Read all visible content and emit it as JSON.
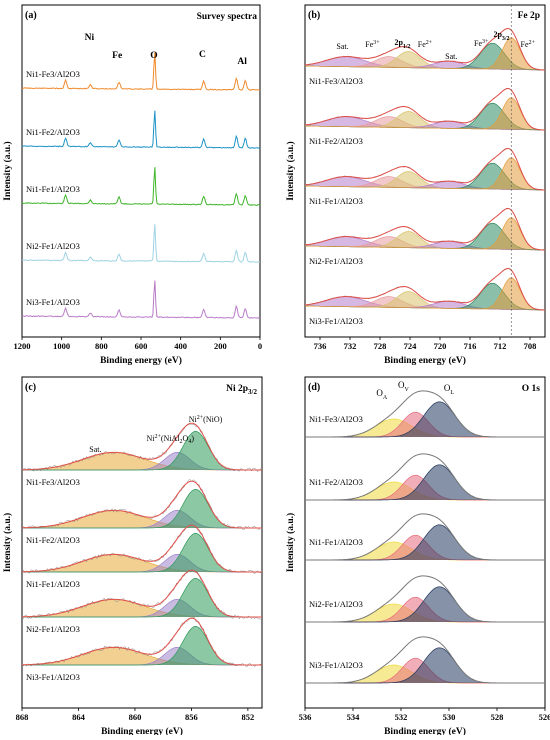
{
  "colors": {
    "axis": "#000000",
    "spectrum_a": [
      "#F08A2C",
      "#1E93C7",
      "#3FB52A",
      "#9ED3E3",
      "#B97BC8"
    ],
    "fit_envelope": "#E0504A",
    "raw": "#8A8A8A",
    "fe3_fill": "#E89AA0",
    "fe2_fill": "#2E8A62",
    "sat_fill": "#B77DCB",
    "satb_fill": "#D9C36E",
    "fe2p32_fill": "#E39B3B",
    "ni_sat_fill": "#E6A939",
    "ni_nial_fill": "#9C84C9",
    "ni_nio_fill": "#2E9A5A",
    "o_l_fill": "#23385E",
    "o_v_fill": "#E76C7E",
    "o_a_fill": "#EEDB3C"
  },
  "chart_data": [
    {
      "id": "a",
      "type": "line",
      "panel_label": "(a)",
      "title": "Survey spectra",
      "xlabel": "Binding energy (eV)",
      "ylabel": "Intensity (a.u.)",
      "xlim": [
        1200,
        0
      ],
      "xticks": [
        1200,
        1000,
        800,
        600,
        400,
        200,
        0
      ],
      "series": [
        {
          "name": "Ni1-Fe3/Al2O3",
          "label_main": "Ni",
          "sub1": "1",
          "mid": "-Fe",
          "sub2": "3",
          "tail": "/Al",
          "sub3": "2",
          "tail2": "O",
          "sub4": "3"
        },
        {
          "name": "Ni1-Fe2/Al2O3",
          "label_main": "Ni",
          "sub1": "1",
          "mid": "-Fe",
          "sub2": "2",
          "tail": "/Al",
          "sub3": "2",
          "tail2": "O",
          "sub4": "3"
        },
        {
          "name": "Ni1-Fe1/Al2O3",
          "label_main": "Ni",
          "sub1": "1",
          "mid": "-Fe",
          "sub2": "1",
          "tail": "/Al",
          "sub3": "2",
          "tail2": "O",
          "sub4": "3"
        },
        {
          "name": "Ni2-Fe1/Al2O3",
          "label_main": "Ni",
          "sub1": "2",
          "mid": "-Fe",
          "sub2": "1",
          "tail": "/Al",
          "sub3": "2",
          "tail2": "O",
          "sub4": "3"
        },
        {
          "name": "Ni3-Fe1/Al2O3",
          "label_main": "Ni",
          "sub1": "3",
          "mid": "-Fe",
          "sub2": "1",
          "tail": "/Al",
          "sub3": "2",
          "tail2": "O",
          "sub4": "3"
        }
      ],
      "peaks": [
        {
          "x": 980,
          "h": 0.22
        },
        {
          "x": 855,
          "h": 0.1
        },
        {
          "x": 711,
          "h": 0.18
        },
        {
          "x": 531,
          "h": 1.0
        },
        {
          "x": 284,
          "h": 0.22
        },
        {
          "x": 119,
          "h": 0.3
        },
        {
          "x": 74,
          "h": 0.25
        }
      ],
      "annotations": [
        {
          "text": "Ni",
          "x": 860
        },
        {
          "text": "Fe",
          "x": 720
        },
        {
          "text": "O",
          "x": 535
        },
        {
          "text": "C",
          "x": 290
        },
        {
          "text": "Al",
          "x": 90
        }
      ]
    },
    {
      "id": "b",
      "type": "line",
      "panel_label": "(b)",
      "title": "Fe 2p",
      "xlabel": "Binding energy (eV)",
      "ylabel": "Intensity (a.u.)",
      "xlim": [
        738,
        706
      ],
      "xticks": [
        736,
        732,
        728,
        724,
        720,
        716,
        712,
        708
      ],
      "series_labels": [
        "Ni1-Fe3/Al2O3",
        "Ni1-Fe2/Al2O3",
        "Ni1-Fe1/Al2O3",
        "Ni2-Fe1/Al2O3",
        "Ni3-Fe1/Al2O3"
      ],
      "components": [
        {
          "name": "sat",
          "x": 732.5,
          "w": 2.6,
          "h": 0.28,
          "color_key": "sat_fill"
        },
        {
          "name": "fe3_12",
          "x": 726.8,
          "w": 1.8,
          "h": 0.3,
          "color_key": "fe3_fill"
        },
        {
          "name": "fe2_12",
          "x": 724.2,
          "w": 1.6,
          "h": 0.45,
          "color_key": "satb_fill"
        },
        {
          "name": "satb",
          "x": 718.8,
          "w": 2.0,
          "h": 0.2,
          "color_key": "sat_fill"
        },
        {
          "name": "fe3_32",
          "x": 713.0,
          "w": 1.6,
          "h": 0.72,
          "color_key": "fe2_fill"
        },
        {
          "name": "fe2_32",
          "x": 710.5,
          "w": 1.2,
          "h": 0.88,
          "color_key": "fe2p32_fill"
        }
      ],
      "annotations": [
        {
          "text": "Sat.",
          "x": 733.0
        },
        {
          "text": "Fe",
          "sup": "3+",
          "x": 729.0
        },
        {
          "text": "2p",
          "sub": "1/2",
          "x": 725.0
        },
        {
          "text": "Fe",
          "sup": "2+",
          "x": 722.0
        },
        {
          "text": "Sat.",
          "x": 718.5
        },
        {
          "text": "Fe",
          "sup": "3+",
          "x": 714.5
        },
        {
          "text": "2p",
          "sub": "3/2",
          "x": 711.8
        },
        {
          "text": "Fe",
          "sup": "2+",
          "x": 708.3
        }
      ]
    },
    {
      "id": "c",
      "type": "line",
      "panel_label": "(c)",
      "title_main": "Ni 2p",
      "title_sub": "3/2",
      "xlabel": "Binding energy (eV)",
      "ylabel": "Intensity (a.u.)",
      "xlim": [
        868,
        851
      ],
      "xticks": [
        868,
        864,
        860,
        856,
        852
      ],
      "series_labels": [
        "Ni1-Fe3/Al2O3",
        "Ni1-Fe2/Al2O3",
        "Ni1-Fe1/Al2O3",
        "Ni2-Fe1/Al2O3",
        "Ni3-Fe1/Al2O3"
      ],
      "components": [
        {
          "name": "sat",
          "x": 861.5,
          "w": 2.2,
          "h": 0.42,
          "color_key": "ni_sat_fill"
        },
        {
          "name": "nial",
          "x": 857.0,
          "w": 0.9,
          "h": 0.42,
          "color_key": "ni_nial_fill"
        },
        {
          "name": "nio",
          "x": 855.7,
          "w": 0.9,
          "h": 0.92,
          "color_key": "ni_nio_fill"
        }
      ],
      "annotations": [
        {
          "text": "Sat.",
          "x": 862.8
        },
        {
          "text": "Ni",
          "sup": "2+",
          "suffix": "(NiAl",
          "sub": "2",
          "suffix2": "O",
          "sub2": "4",
          "suffix3": ")",
          "x": 857.5
        },
        {
          "text": "Ni",
          "sup": "2+",
          "suffix": "(NiO)",
          "x": 855.0
        }
      ]
    },
    {
      "id": "d",
      "type": "line",
      "panel_label": "(d)",
      "title": "O 1s",
      "xlabel": "Binding energy (eV)",
      "ylabel": "Intensity (a.u.)",
      "xlim": [
        536,
        526
      ],
      "xticks": [
        536,
        534,
        532,
        530,
        528,
        526
      ],
      "series_labels": [
        "Ni1-Fe3/Al2O3",
        "Ni1-Fe2/Al2O3",
        "Ni1-Fe1/Al2O3",
        "Ni2-Fe1/Al2O3",
        "Ni3-Fe1/Al2O3"
      ],
      "components": [
        {
          "name": "oa",
          "x": 532.3,
          "w": 0.75,
          "h": 0.45,
          "color_key": "o_a_fill"
        },
        {
          "name": "ov",
          "x": 531.4,
          "w": 0.55,
          "h": 0.62,
          "color_key": "o_v_fill"
        },
        {
          "name": "ol",
          "x": 530.4,
          "w": 0.65,
          "h": 0.88,
          "color_key": "o_l_fill"
        }
      ],
      "annotations": [
        {
          "text": "O",
          "sub": "A",
          "x": 532.8
        },
        {
          "text": "O",
          "sub": "V",
          "x": 531.9
        },
        {
          "text": "O",
          "sub": "L",
          "x": 530.0
        }
      ]
    }
  ]
}
